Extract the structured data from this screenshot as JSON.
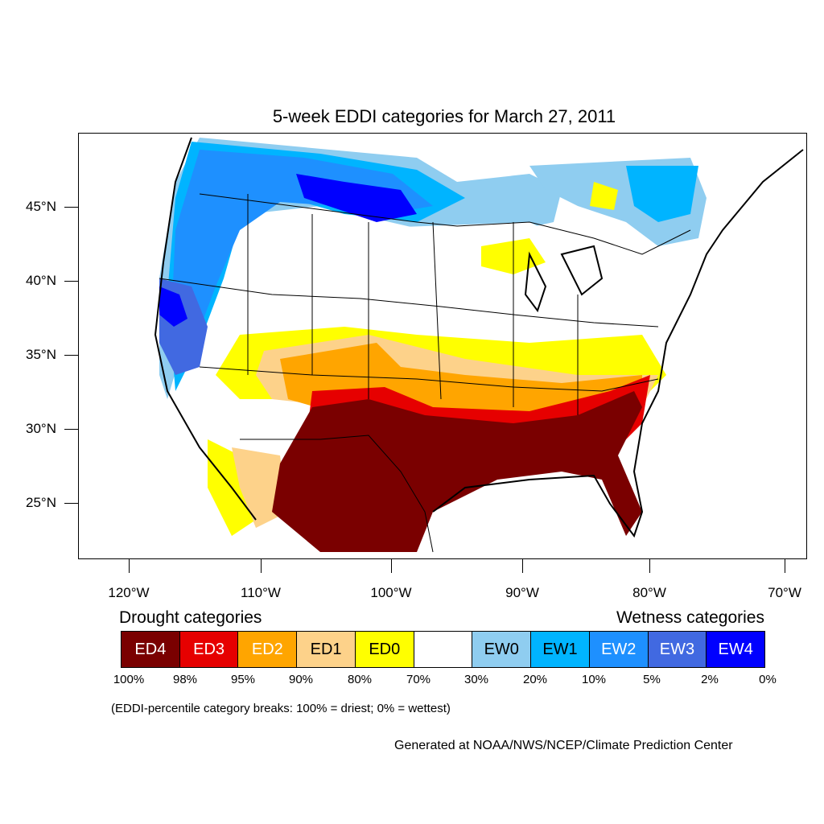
{
  "title": "5-week EDDI categories for March 27, 2011",
  "lat_labels": [
    "45°N",
    "40°N",
    "35°N",
    "30°N",
    "25°N"
  ],
  "lon_labels": [
    "120°W",
    "110°W",
    "100°W",
    "90°W",
    "80°W",
    "70°W"
  ],
  "legend": {
    "drought_title": "Drought categories",
    "wetness_title": "Wetness categories",
    "categories": [
      {
        "label": "ED4",
        "color": "#7a0000",
        "text_color": "#ffffff"
      },
      {
        "label": "ED3",
        "color": "#e60000",
        "text_color": "#ffffff"
      },
      {
        "label": "ED2",
        "color": "#ffa500",
        "text_color": "#ffffff"
      },
      {
        "label": "ED1",
        "color": "#fdd28a",
        "text_color": "#000000"
      },
      {
        "label": "ED0",
        "color": "#ffff00",
        "text_color": "#000000"
      },
      {
        "label": "",
        "color": "#ffffff",
        "text_color": "#000000"
      },
      {
        "label": "EW0",
        "color": "#8fcdf0",
        "text_color": "#000000"
      },
      {
        "label": "EW1",
        "color": "#00b4ff",
        "text_color": "#000000"
      },
      {
        "label": "EW2",
        "color": "#1e90ff",
        "text_color": "#ffffff"
      },
      {
        "label": "EW3",
        "color": "#4169e1",
        "text_color": "#ffffff"
      },
      {
        "label": "EW4",
        "color": "#0000ff",
        "text_color": "#ffffff"
      }
    ],
    "breaks": [
      "100%",
      "98%",
      "95%",
      "90%",
      "80%",
      "70%",
      "30%",
      "20%",
      "10%",
      "5%",
      "2%",
      "0%"
    ]
  },
  "note": "(EDDI-percentile category breaks: 100% = driest; 0% = wettest)",
  "credit": "Generated at NOAA/NWS/NCEP/Climate Prediction Center"
}
